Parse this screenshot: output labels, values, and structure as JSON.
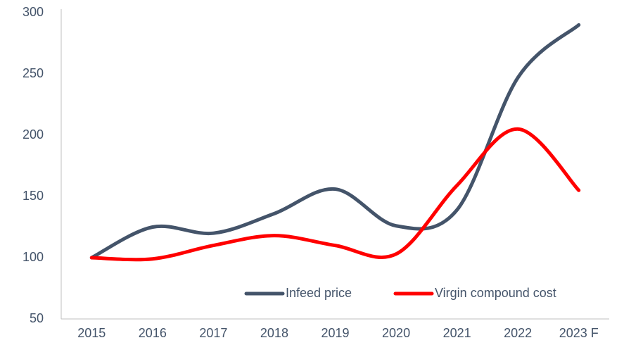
{
  "chart_data": {
    "type": "line",
    "categories": [
      "2015",
      "2016",
      "2017",
      "2018",
      "2019",
      "2020",
      "2021",
      "2022",
      "2023 F"
    ],
    "series": [
      {
        "name": "Infeed price",
        "color": "#44546a",
        "values": [
          100,
          125,
          120,
          136,
          156,
          126,
          139,
          247,
          290
        ]
      },
      {
        "name": "Virgin compound cost",
        "color": "#ff0000",
        "values": [
          100,
          99,
          110,
          118,
          110,
          103,
          159,
          205,
          155
        ]
      }
    ],
    "ylim": [
      50,
      300
    ],
    "yticks": [
      50,
      100,
      150,
      200,
      250,
      300
    ],
    "grid": false,
    "legend": "bottom-right"
  }
}
